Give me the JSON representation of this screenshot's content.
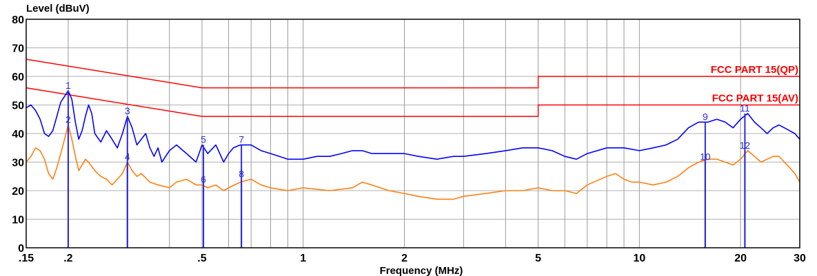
{
  "chart_data": {
    "type": "line",
    "ylabel": "Level (dBuV)",
    "xlabel": "Frequency (MHz)",
    "x_scale": "log",
    "xlim": [
      0.15,
      30
    ],
    "ylim": [
      0,
      80
    ],
    "grid": true,
    "x_ticks": [
      {
        "value": 0.15,
        "label": ".15"
      },
      {
        "value": 0.2,
        "label": ".2"
      },
      {
        "value": 0.5,
        "label": ".5"
      },
      {
        "value": 1,
        "label": "1"
      },
      {
        "value": 2,
        "label": "2"
      },
      {
        "value": 5,
        "label": "5"
      },
      {
        "value": 10,
        "label": "10"
      },
      {
        "value": 20,
        "label": "20"
      },
      {
        "value": 30,
        "label": "30"
      }
    ],
    "y_ticks": [
      {
        "value": 0,
        "label": "0"
      },
      {
        "value": 10,
        "label": "10"
      },
      {
        "value": 20,
        "label": "20"
      },
      {
        "value": 30,
        "label": "30"
      },
      {
        "value": 40,
        "label": "40"
      },
      {
        "value": 50,
        "label": "50"
      },
      {
        "value": 60,
        "label": "60"
      },
      {
        "value": 70,
        "label": "70"
      },
      {
        "value": 80,
        "label": "80"
      }
    ],
    "limits": [
      {
        "label": "FCC PART 15(QP)",
        "color": "#ff0000",
        "points": [
          [
            0.15,
            66
          ],
          [
            0.5,
            56
          ],
          [
            5,
            56
          ],
          [
            5,
            60
          ],
          [
            30,
            60
          ]
        ]
      },
      {
        "label": "FCC PART 15(AV)",
        "color": "#ff0000",
        "points": [
          [
            0.15,
            56
          ],
          [
            0.5,
            46
          ],
          [
            5,
            46
          ],
          [
            5,
            50
          ],
          [
            30,
            50
          ]
        ]
      }
    ],
    "series": [
      {
        "color": "#0000ff",
        "points": [
          [
            0.15,
            49
          ],
          [
            0.155,
            50
          ],
          [
            0.16,
            48
          ],
          [
            0.165,
            45
          ],
          [
            0.17,
            40
          ],
          [
            0.175,
            39
          ],
          [
            0.18,
            41
          ],
          [
            0.185,
            46
          ],
          [
            0.19,
            51
          ],
          [
            0.195,
            53
          ],
          [
            0.2,
            55
          ],
          [
            0.205,
            52
          ],
          [
            0.21,
            44
          ],
          [
            0.215,
            38
          ],
          [
            0.22,
            41
          ],
          [
            0.225,
            46
          ],
          [
            0.23,
            50
          ],
          [
            0.235,
            47
          ],
          [
            0.24,
            40
          ],
          [
            0.25,
            37
          ],
          [
            0.26,
            41
          ],
          [
            0.27,
            38
          ],
          [
            0.28,
            35
          ],
          [
            0.29,
            40
          ],
          [
            0.3,
            46
          ],
          [
            0.31,
            42
          ],
          [
            0.32,
            36
          ],
          [
            0.33,
            38
          ],
          [
            0.34,
            40
          ],
          [
            0.35,
            35
          ],
          [
            0.36,
            32
          ],
          [
            0.37,
            35
          ],
          [
            0.38,
            30
          ],
          [
            0.4,
            34
          ],
          [
            0.42,
            36
          ],
          [
            0.45,
            33
          ],
          [
            0.48,
            30
          ],
          [
            0.5,
            36
          ],
          [
            0.52,
            33
          ],
          [
            0.55,
            36
          ],
          [
            0.58,
            30
          ],
          [
            0.6,
            33
          ],
          [
            0.62,
            35
          ],
          [
            0.65,
            36
          ],
          [
            0.7,
            36
          ],
          [
            0.75,
            34
          ],
          [
            0.8,
            33
          ],
          [
            0.9,
            31
          ],
          [
            1,
            31
          ],
          [
            1.1,
            32
          ],
          [
            1.2,
            32
          ],
          [
            1.3,
            33
          ],
          [
            1.4,
            34
          ],
          [
            1.5,
            34
          ],
          [
            1.6,
            33
          ],
          [
            1.8,
            33
          ],
          [
            2,
            33
          ],
          [
            2.2,
            32
          ],
          [
            2.5,
            31
          ],
          [
            2.8,
            32
          ],
          [
            3,
            32
          ],
          [
            3.5,
            33
          ],
          [
            4,
            34
          ],
          [
            4.5,
            35
          ],
          [
            5,
            35
          ],
          [
            5.5,
            34
          ],
          [
            6,
            32
          ],
          [
            6.5,
            31
          ],
          [
            7,
            33
          ],
          [
            8,
            35
          ],
          [
            9,
            35
          ],
          [
            10,
            34
          ],
          [
            11,
            35
          ],
          [
            12,
            36
          ],
          [
            13,
            38
          ],
          [
            14,
            42
          ],
          [
            15,
            44
          ],
          [
            16,
            44
          ],
          [
            17,
            45
          ],
          [
            18,
            44
          ],
          [
            19,
            42
          ],
          [
            20,
            45
          ],
          [
            21,
            47
          ],
          [
            22,
            44
          ],
          [
            23,
            42
          ],
          [
            24,
            40
          ],
          [
            25,
            42
          ],
          [
            26,
            43
          ],
          [
            27,
            42
          ],
          [
            28,
            41
          ],
          [
            29,
            40
          ],
          [
            30,
            38
          ]
        ]
      },
      {
        "color": "#ff7f0e",
        "points": [
          [
            0.15,
            30
          ],
          [
            0.155,
            32
          ],
          [
            0.16,
            35
          ],
          [
            0.165,
            34
          ],
          [
            0.17,
            31
          ],
          [
            0.175,
            26
          ],
          [
            0.18,
            24
          ],
          [
            0.185,
            28
          ],
          [
            0.19,
            33
          ],
          [
            0.195,
            38
          ],
          [
            0.2,
            43
          ],
          [
            0.205,
            38
          ],
          [
            0.21,
            32
          ],
          [
            0.215,
            27
          ],
          [
            0.22,
            29
          ],
          [
            0.225,
            31
          ],
          [
            0.23,
            30
          ],
          [
            0.24,
            27
          ],
          [
            0.25,
            25
          ],
          [
            0.26,
            24
          ],
          [
            0.27,
            22
          ],
          [
            0.28,
            24
          ],
          [
            0.29,
            26
          ],
          [
            0.3,
            30
          ],
          [
            0.31,
            27
          ],
          [
            0.32,
            25
          ],
          [
            0.33,
            26
          ],
          [
            0.35,
            23
          ],
          [
            0.37,
            22
          ],
          [
            0.4,
            21
          ],
          [
            0.42,
            23
          ],
          [
            0.45,
            24
          ],
          [
            0.48,
            22
          ],
          [
            0.5,
            22
          ],
          [
            0.52,
            21
          ],
          [
            0.55,
            22
          ],
          [
            0.58,
            20
          ],
          [
            0.6,
            21
          ],
          [
            0.65,
            23
          ],
          [
            0.7,
            24
          ],
          [
            0.75,
            22
          ],
          [
            0.8,
            21
          ],
          [
            0.9,
            20
          ],
          [
            1,
            21
          ],
          [
            1.2,
            20
          ],
          [
            1.4,
            21
          ],
          [
            1.5,
            23
          ],
          [
            1.6,
            22
          ],
          [
            1.8,
            20
          ],
          [
            2,
            19
          ],
          [
            2.2,
            18
          ],
          [
            2.5,
            17
          ],
          [
            2.8,
            17
          ],
          [
            3,
            18
          ],
          [
            3.5,
            19
          ],
          [
            4,
            20
          ],
          [
            4.5,
            20
          ],
          [
            5,
            21
          ],
          [
            5.5,
            20
          ],
          [
            6,
            20
          ],
          [
            6.5,
            19
          ],
          [
            7,
            22
          ],
          [
            8,
            25
          ],
          [
            8.5,
            26
          ],
          [
            9,
            24
          ],
          [
            9.5,
            23
          ],
          [
            10,
            23
          ],
          [
            11,
            22
          ],
          [
            12,
            23
          ],
          [
            13,
            25
          ],
          [
            14,
            28
          ],
          [
            15,
            30
          ],
          [
            16,
            31
          ],
          [
            17,
            31
          ],
          [
            18,
            30
          ],
          [
            19,
            29
          ],
          [
            20,
            31
          ],
          [
            21,
            34
          ],
          [
            22,
            32
          ],
          [
            23,
            30
          ],
          [
            24,
            31
          ],
          [
            25,
            32
          ],
          [
            26,
            32
          ],
          [
            27,
            30
          ],
          [
            28,
            28
          ],
          [
            29,
            26
          ],
          [
            30,
            23
          ]
        ]
      }
    ],
    "markers": [
      {
        "label": "1",
        "x": 0.2,
        "y": 55
      },
      {
        "label": "2",
        "x": 0.2,
        "y": 43
      },
      {
        "label": "3",
        "x": 0.3,
        "y": 46
      },
      {
        "label": "4",
        "x": 0.3,
        "y": 30
      },
      {
        "label": "5",
        "x": 0.505,
        "y": 36
      },
      {
        "label": "6",
        "x": 0.505,
        "y": 22
      },
      {
        "label": "7",
        "x": 0.655,
        "y": 36
      },
      {
        "label": "8",
        "x": 0.655,
        "y": 24
      },
      {
        "label": "9",
        "x": 15.7,
        "y": 44
      },
      {
        "label": "10",
        "x": 15.7,
        "y": 30
      },
      {
        "label": "11",
        "x": 20.6,
        "y": 47
      },
      {
        "label": "12",
        "x": 20.6,
        "y": 34
      }
    ],
    "marker_color": "#2b2bd9"
  }
}
